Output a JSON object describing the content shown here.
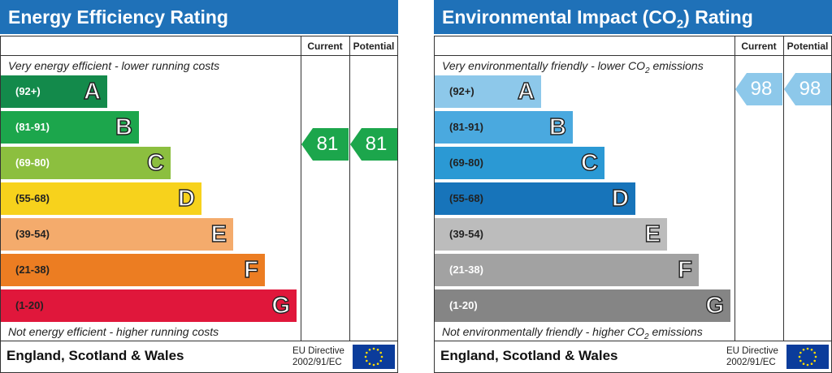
{
  "energy": {
    "title": "Energy Efficiency Rating",
    "col_current": "Current",
    "col_potential": "Potential",
    "top_note": "Very energy efficient - lower running costs",
    "bottom_note": "Not energy efficient - higher running costs",
    "bands": [
      {
        "range": "(92+)",
        "letter": "A",
        "color": "#138a4b"
      },
      {
        "range": "(81-91)",
        "letter": "B",
        "color": "#1ca64c"
      },
      {
        "range": "(69-80)",
        "letter": "C",
        "color": "#8cbf3f"
      },
      {
        "range": "(55-68)",
        "letter": "D",
        "color": "#f7d21c"
      },
      {
        "range": "(39-54)",
        "letter": "E",
        "color": "#f4ab6c"
      },
      {
        "range": "(21-38)",
        "letter": "F",
        "color": "#ec7d22"
      },
      {
        "range": "(1-20)",
        "letter": "G",
        "color": "#e0173b"
      }
    ],
    "current": {
      "value": "81",
      "color": "#1ca64c"
    },
    "potential": {
      "value": "81",
      "color": "#1ca64c"
    },
    "region": "England, Scotland & Wales",
    "eu_line1": "EU Directive",
    "eu_line2": "2002/91/EC"
  },
  "environment": {
    "title_prefix": "Environmental Impact (CO",
    "title_sub": "2",
    "title_suffix": ") Rating",
    "col_current": "Current",
    "col_potential": "Potential",
    "top_note_prefix": "Very environmentally friendly - lower CO",
    "top_note_sub": "2",
    "top_note_suffix": " emissions",
    "bottom_note_prefix": "Not environmentally friendly - higher CO",
    "bottom_note_sub": "2",
    "bottom_note_suffix": " emissions",
    "bands": [
      {
        "range": "(92+)",
        "letter": "A",
        "color": "#8dc8ea"
      },
      {
        "range": "(81-91)",
        "letter": "B",
        "color": "#4aa9df"
      },
      {
        "range": "(69-80)",
        "letter": "C",
        "color": "#2b99d4"
      },
      {
        "range": "(55-68)",
        "letter": "D",
        "color": "#1774ba"
      },
      {
        "range": "(39-54)",
        "letter": "E",
        "color": "#bcbcbc"
      },
      {
        "range": "(21-38)",
        "letter": "F",
        "color": "#a2a2a2"
      },
      {
        "range": "(1-20)",
        "letter": "G",
        "color": "#858585"
      }
    ],
    "current": {
      "value": "98",
      "color": "#8dc8ea"
    },
    "potential": {
      "value": "98",
      "color": "#8dc8ea"
    },
    "region": "England, Scotland & Wales",
    "eu_line1": "EU Directive",
    "eu_line2": "2002/91/EC"
  }
}
